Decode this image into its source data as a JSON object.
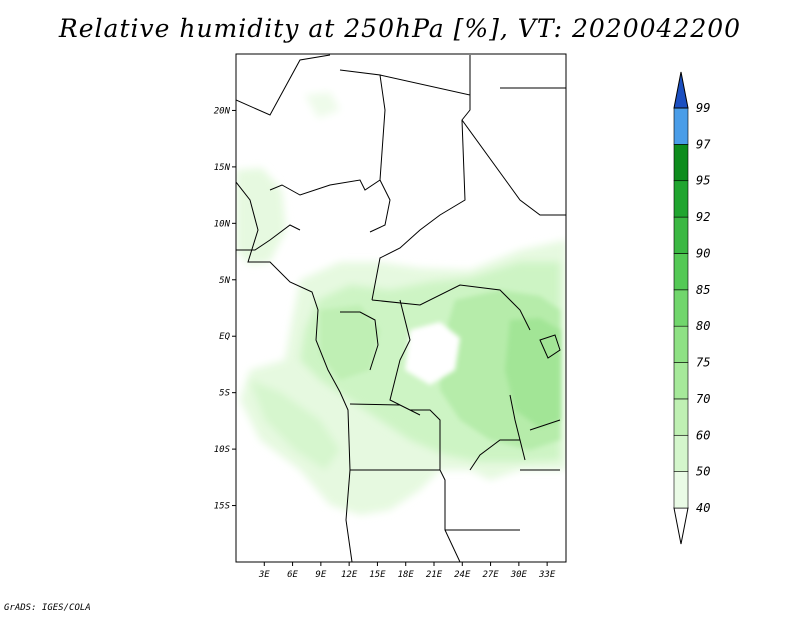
{
  "title": "Relative humidity at 250hPa [%], VT: 2020042200",
  "credit": "GrADS: IGES/COLA",
  "map": {
    "lon_range": [
      0,
      35
    ],
    "lat_range": [
      -20,
      25
    ],
    "lat_ticks": [
      {
        "lat": 20,
        "label": "20N"
      },
      {
        "lat": 15,
        "label": "15N"
      },
      {
        "lat": 10,
        "label": "10N"
      },
      {
        "lat": 5,
        "label": "5N"
      },
      {
        "lat": 0,
        "label": "EQ"
      },
      {
        "lat": -5,
        "label": "5S"
      },
      {
        "lat": -10,
        "label": "10S"
      },
      {
        "lat": -15,
        "label": "15S"
      }
    ],
    "lon_ticks": [
      {
        "lon": 3,
        "label": "3E"
      },
      {
        "lon": 6,
        "label": "6E"
      },
      {
        "lon": 9,
        "label": "9E"
      },
      {
        "lon": 12,
        "label": "12E"
      },
      {
        "lon": 15,
        "label": "15E"
      },
      {
        "lon": 18,
        "label": "18E"
      },
      {
        "lon": 21,
        "label": "21E"
      },
      {
        "lon": 24,
        "label": "24E"
      },
      {
        "lon": 27,
        "label": "27E"
      },
      {
        "lon": 30,
        "label": "30E"
      },
      {
        "lon": 33,
        "label": "33E"
      }
    ]
  },
  "colorbar": {
    "levels": [
      "40",
      "50",
      "60",
      "70",
      "75",
      "80",
      "85",
      "90",
      "92",
      "95",
      "97",
      "99"
    ],
    "colors": [
      "#eafbe6",
      "#d4f6cc",
      "#bff0b3",
      "#a6e99a",
      "#8ee184",
      "#71d66c",
      "#54c955",
      "#3bb843",
      "#20a52f",
      "#0d8c1d",
      "#4a9de8",
      "#2f74d8",
      "#1b4fc0"
    ]
  }
}
